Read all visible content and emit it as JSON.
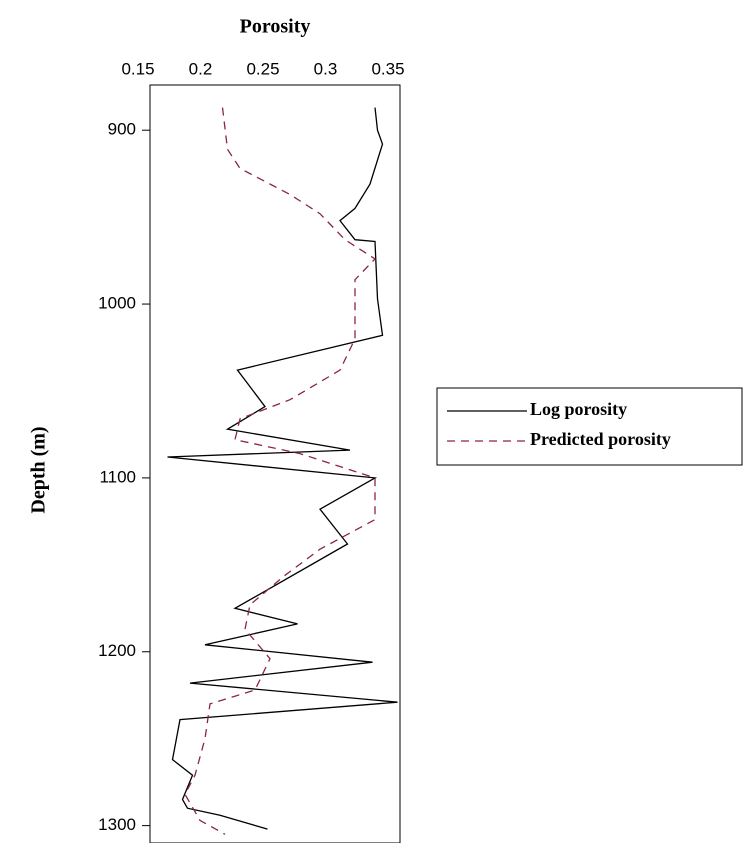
{
  "chart_data": {
    "type": "line",
    "title": "Porosity",
    "y_label": "Depth (m)",
    "xlim": [
      0.15,
      0.35
    ],
    "xticks": [
      0.15,
      0.2,
      0.25,
      0.3,
      0.35
    ],
    "ylim": [
      874,
      1310
    ],
    "yticks": [
      900,
      1000,
      1100,
      1200,
      1300
    ],
    "y_inverted": true,
    "legend": "right",
    "series": [
      {
        "name": "Log porosity",
        "color": "#000000",
        "style": "solid",
        "depth": [
          887,
          900,
          908,
          931,
          945,
          952,
          963,
          964,
          997,
          1018,
          1038,
          1059,
          1072,
          1084,
          1088,
          1100,
          1118,
          1138,
          1175,
          1184,
          1196,
          1206,
          1218,
          1229,
          1239,
          1262,
          1271,
          1285,
          1290,
          1294,
          1302
        ],
        "values": [
          0.33,
          0.332,
          0.336,
          0.326,
          0.314,
          0.302,
          0.314,
          0.33,
          0.332,
          0.336,
          0.22,
          0.242,
          0.212,
          0.31,
          0.164,
          0.33,
          0.286,
          0.308,
          0.218,
          0.268,
          0.194,
          0.328,
          0.182,
          0.348,
          0.174,
          0.168,
          0.184,
          0.176,
          0.18,
          0.206,
          0.244
        ]
      },
      {
        "name": "Predicted porosity",
        "color": "#8b2252",
        "style": "dashed",
        "depth": [
          887,
          911,
          922,
          937,
          948,
          963,
          974,
          986,
          1020,
          1038,
          1055,
          1066,
          1078,
          1086,
          1100,
          1124,
          1141,
          1156,
          1173,
          1187,
          1204,
          1222,
          1230,
          1250,
          1271,
          1282,
          1297,
          1305
        ],
        "values": [
          0.208,
          0.212,
          0.222,
          0.262,
          0.286,
          0.306,
          0.33,
          0.314,
          0.314,
          0.302,
          0.262,
          0.222,
          0.218,
          0.27,
          0.33,
          0.33,
          0.286,
          0.258,
          0.23,
          0.226,
          0.246,
          0.234,
          0.198,
          0.194,
          0.186,
          0.178,
          0.19,
          0.21
        ]
      }
    ]
  }
}
